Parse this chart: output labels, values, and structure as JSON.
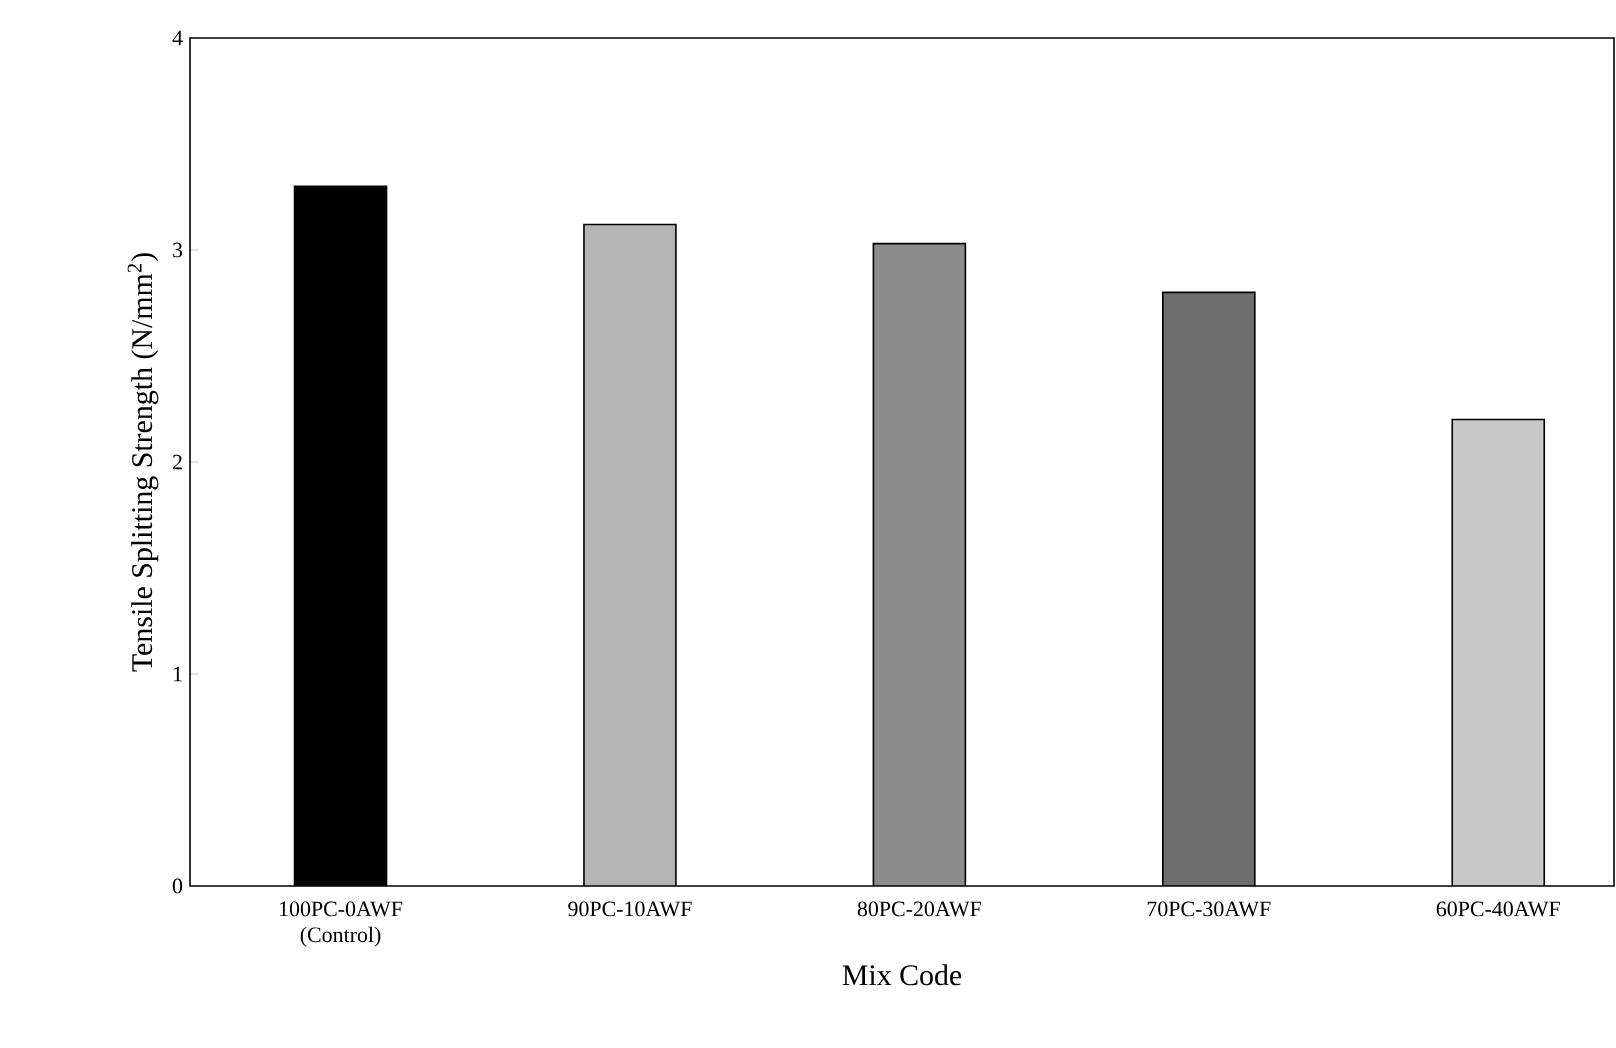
{
  "chart_data": {
    "type": "bar",
    "xlabel": "Mix Code",
    "ylabel": "Tensile Splitting Strength (N/mm$^{2}$)",
    "categories": [
      "100PC-0AWF (Control)",
      "90PC-10AWF",
      "80PC-20AWF",
      "70PC-30AWF",
      "60PC-40AWF"
    ],
    "values": [
      3.3,
      3.12,
      3.03,
      2.8,
      2.2
    ],
    "colors": [
      "#000000",
      "#b4b4b4",
      "#8c8c8c",
      "#6e6e6e",
      "#c8c8c8"
    ],
    "ylim": [
      0,
      4
    ],
    "yticks": [
      0,
      1,
      2,
      3,
      4
    ],
    "grid": false
  }
}
